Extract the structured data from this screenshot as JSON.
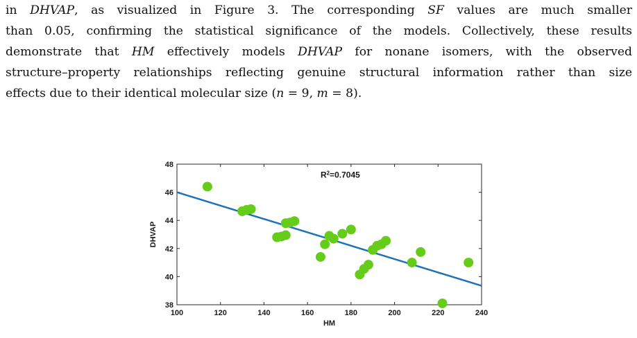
{
  "paragraph": {
    "line1": {
      "a": "in ",
      "v1": "DHVAP",
      "b": ", as visualized in Figure 3. The corresponding ",
      "v2": "SF",
      "c": " values are much smaller"
    },
    "line2": "than 0.05, confirming the statistical significance of the models. Collectively, these results",
    "line3": {
      "a": "demonstrate that ",
      "v1": "HM",
      "b": " effectively models ",
      "v2": "DHVAP",
      "c": " for nonane isomers, with the observed"
    },
    "line4": "structure–property relationships reflecting genuine structural information rather than size",
    "line5": {
      "a": "effects due to their identical molecular size (",
      "v1": "n",
      "b": " = 9, ",
      "v2": "m",
      "c": " = 8)."
    }
  },
  "chart_data": {
    "type": "scatter",
    "xlabel": "HM",
    "ylabel": "DHVAP",
    "xlim": [
      100,
      240
    ],
    "ylim": [
      38,
      48
    ],
    "x_ticks": [
      "100",
      "120",
      "140",
      "160",
      "180",
      "200",
      "220",
      "240"
    ],
    "y_ticks": [
      "38",
      "40",
      "42",
      "44",
      "46",
      "48"
    ],
    "annotation": "R²=0.7045",
    "grid": false,
    "points": [
      {
        "x": 114,
        "y": 46.4
      },
      {
        "x": 130,
        "y": 44.65
      },
      {
        "x": 132,
        "y": 44.75
      },
      {
        "x": 134,
        "y": 44.8
      },
      {
        "x": 146,
        "y": 42.8
      },
      {
        "x": 148,
        "y": 42.85
      },
      {
        "x": 150,
        "y": 42.95
      },
      {
        "x": 150,
        "y": 43.8
      },
      {
        "x": 152,
        "y": 43.85
      },
      {
        "x": 154,
        "y": 43.95
      },
      {
        "x": 166,
        "y": 41.4
      },
      {
        "x": 168,
        "y": 42.3
      },
      {
        "x": 170,
        "y": 42.9
      },
      {
        "x": 172,
        "y": 42.7
      },
      {
        "x": 176,
        "y": 43.05
      },
      {
        "x": 180,
        "y": 43.35
      },
      {
        "x": 184,
        "y": 40.15
      },
      {
        "x": 186,
        "y": 40.55
      },
      {
        "x": 188,
        "y": 40.85
      },
      {
        "x": 190,
        "y": 41.9
      },
      {
        "x": 192,
        "y": 42.2
      },
      {
        "x": 194,
        "y": 42.3
      },
      {
        "x": 196,
        "y": 42.55
      },
      {
        "x": 208,
        "y": 41.0
      },
      {
        "x": 212,
        "y": 41.75
      },
      {
        "x": 222,
        "y": 38.1
      },
      {
        "x": 234,
        "y": 41.0
      }
    ],
    "fit_line": {
      "x": [
        100,
        240
      ],
      "y": [
        46.0,
        39.35
      ]
    },
    "colors": {
      "points": "#66cc1a",
      "fit_line": "#1f72b8",
      "axes": "#262626"
    }
  }
}
